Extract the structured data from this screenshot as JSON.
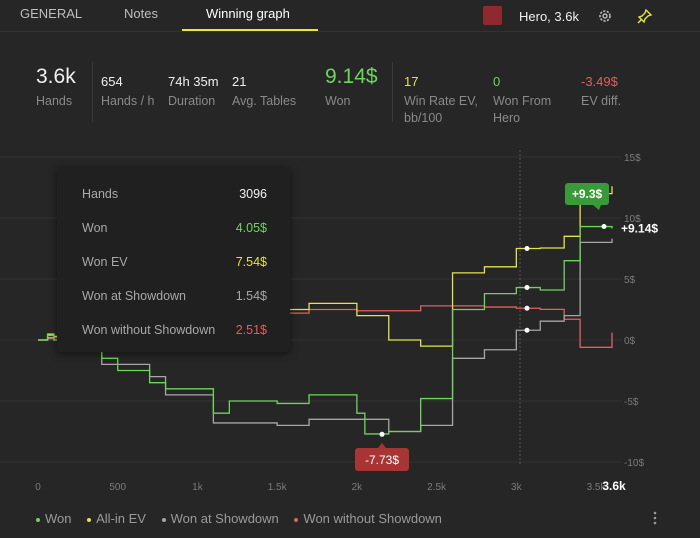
{
  "tabs": [
    {
      "label": "GENERAL"
    },
    {
      "label": "Notes"
    },
    {
      "label": "Winning graph",
      "active": true
    }
  ],
  "player": {
    "label": "Hero, 3.6k",
    "color": "#8e2a2e"
  },
  "stats": {
    "hands": {
      "value": "3.6k",
      "label": "Hands"
    },
    "hands_per_h": {
      "value": "654",
      "label": "Hands / h"
    },
    "duration": {
      "value": "74h 35m",
      "label": "Duration"
    },
    "avg_tables": {
      "value": "21",
      "label": "Avg. Tables"
    },
    "won": {
      "value": "9.14$",
      "label": "Won"
    },
    "winrate_ev": {
      "value": "17",
      "label": "Win Rate EV, bb/100"
    },
    "won_from_hero": {
      "value": "0",
      "label": "Won From Hero"
    },
    "ev_diff": {
      "value": "-3.49$",
      "label": "EV diff."
    }
  },
  "tooltip": {
    "hands": {
      "label": "Hands",
      "value": "3096"
    },
    "won": {
      "label": "Won",
      "value": "4.05$"
    },
    "won_ev": {
      "label": "Won EV",
      "value": "7.54$"
    },
    "won_showdown": {
      "label": "Won at Showdown",
      "value": "1.54$"
    },
    "won_no_showdown": {
      "label": "Won without Showdown",
      "value": "2.51$"
    }
  },
  "colors": {
    "won": "#6cd65b",
    "allin_ev": "#e3e34a",
    "showdown": "#a6a6a6",
    "no_showdown": "#e55d5d"
  },
  "chart_data": {
    "type": "line",
    "x_ticks": [
      "0",
      "500",
      "1k",
      "1.5k",
      "2k",
      "2.5k",
      "3k",
      "3.5k"
    ],
    "x_end_label": "3.6k",
    "y_ticks": [
      "15$",
      "10$",
      "5$",
      "0$",
      "-5$",
      "-10$"
    ],
    "xlim": [
      0,
      3600
    ],
    "ylim": [
      -10,
      15
    ],
    "annotations": {
      "max": "+9.3$",
      "min": "-7.73$",
      "last": "+9.14$"
    },
    "series": [
      {
        "name": "Won",
        "color": "#6cd65b",
        "x": [
          0,
          60,
          100,
          400,
          500,
          700,
          800,
          1100,
          1200,
          1500,
          1700,
          2000,
          2050,
          2200,
          2400,
          2600,
          2800,
          3000,
          3150,
          3300,
          3400,
          3600
        ],
        "values": [
          0,
          0.5,
          0,
          -1.5,
          -2.5,
          -3.5,
          -4,
          -6,
          -5,
          -5.2,
          -4.5,
          -6,
          -7.7,
          -7.5,
          -4.8,
          2.5,
          3.8,
          4.3,
          4.1,
          6.5,
          9.3,
          9.14
        ]
      },
      {
        "name": "All-in EV",
        "color": "#e3e34a",
        "x": [
          0,
          60,
          100,
          400,
          700,
          1100,
          1200,
          1500,
          1700,
          2000,
          2200,
          2400,
          2600,
          2800,
          3000,
          3150,
          3300,
          3400,
          3600
        ],
        "values": [
          0,
          0.4,
          0.3,
          -0.2,
          0.4,
          1.0,
          2.0,
          2.5,
          3.0,
          2.0,
          0.0,
          -0.5,
          5.5,
          6.0,
          7.5,
          7.54,
          8.5,
          12.0,
          12.6
        ]
      },
      {
        "name": "Won at Showdown",
        "color": "#a6a6a6",
        "x": [
          0,
          60,
          100,
          400,
          700,
          800,
          1100,
          1500,
          1700,
          2000,
          2200,
          2400,
          2600,
          2800,
          3000,
          3150,
          3300,
          3400,
          3600
        ],
        "values": [
          0,
          0.2,
          0,
          -2.0,
          -3.0,
          -4.5,
          -6.8,
          -7.0,
          -6.5,
          -6.5,
          -7.5,
          -7.0,
          -1.5,
          -0.8,
          0.8,
          1.54,
          2.0,
          8.0,
          8.3
        ]
      },
      {
        "name": "Won without Showdown",
        "color": "#e55d5d",
        "x": [
          0,
          60,
          100,
          400,
          700,
          1100,
          1500,
          1700,
          2000,
          2400,
          2600,
          2800,
          3000,
          3150,
          3300,
          3400,
          3600
        ],
        "values": [
          0,
          0.1,
          0.2,
          1.4,
          2.4,
          2.6,
          2.2,
          2.5,
          2.4,
          2.8,
          2.8,
          2.7,
          2.6,
          2.51,
          1.7,
          -0.6,
          0.6
        ]
      }
    ]
  },
  "legend": {
    "items": [
      "Won",
      "All-in EV",
      "Won at Showdown",
      "Won without Showdown"
    ]
  }
}
